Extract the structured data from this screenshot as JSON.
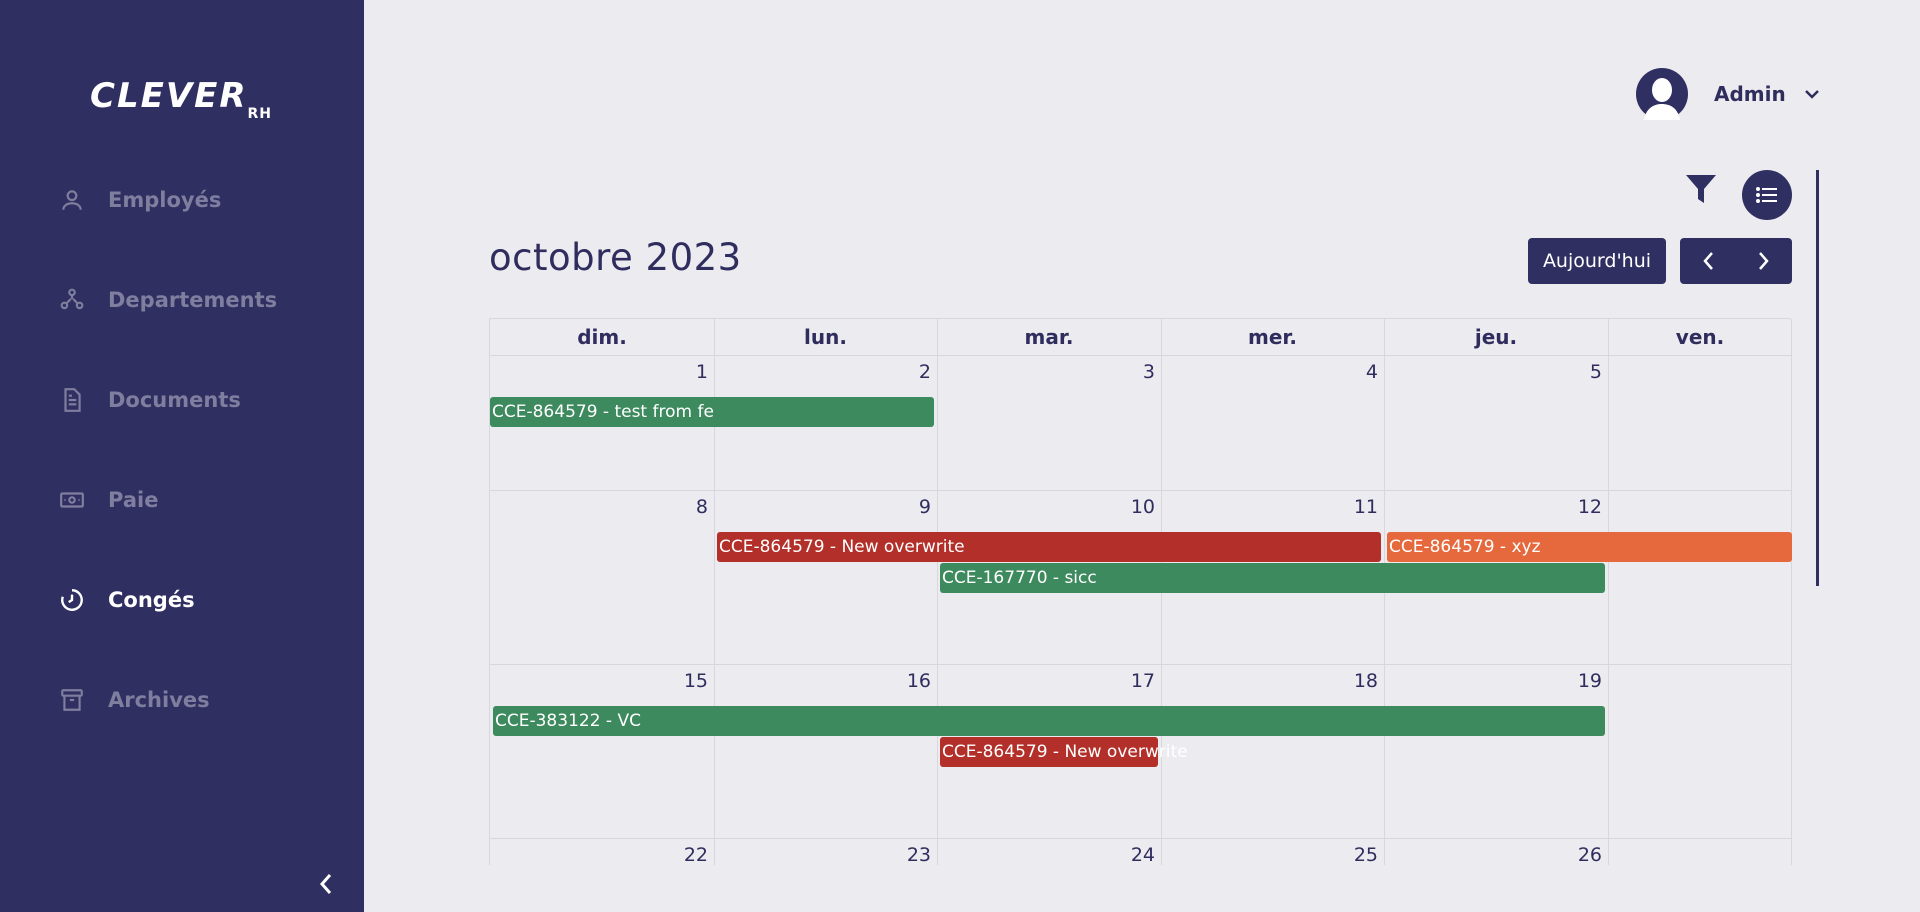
{
  "brand": {
    "logo_text": "CLEVER",
    "logo_sub": "RH"
  },
  "sidebar": {
    "items": [
      {
        "label": "Employés",
        "icon": "user-icon",
        "active": false
      },
      {
        "label": "Departements",
        "icon": "departments-icon",
        "active": false
      },
      {
        "label": "Documents",
        "icon": "document-icon",
        "active": false
      },
      {
        "label": "Paie",
        "icon": "money-icon",
        "active": false
      },
      {
        "label": "Congés",
        "icon": "timer-icon",
        "active": true
      },
      {
        "label": "Archives",
        "icon": "archive-icon",
        "active": false
      }
    ]
  },
  "user": {
    "name": "Admin"
  },
  "calendar": {
    "title": "octobre 2023",
    "today_label": "Aujourd'hui",
    "weekdays": [
      "dim.",
      "lun.",
      "mar.",
      "mer.",
      "jeu.",
      "ven."
    ],
    "weeks": [
      [
        "1",
        "2",
        "3",
        "4",
        "5",
        ""
      ],
      [
        "8",
        "9",
        "10",
        "11",
        "12",
        ""
      ],
      [
        "15",
        "16",
        "17",
        "18",
        "19",
        ""
      ],
      [
        "22",
        "23",
        "24",
        "25",
        "26",
        ""
      ]
    ],
    "events": [
      {
        "label": "CCE-864579 - test from fe",
        "week": 0,
        "start": 0,
        "end": 1,
        "lane": 0,
        "color": "#3e8a5f"
      },
      {
        "label": "CCE-864579 - New overwrite",
        "week": 1,
        "start": 1,
        "end": 3,
        "lane": 0,
        "color": "#b3302a"
      },
      {
        "label": "CCE-864579 - xyz",
        "week": 1,
        "start": 4,
        "end": 5,
        "lane": 0,
        "color": "#e5693c"
      },
      {
        "label": "CCE-167770 - sicc",
        "week": 1,
        "start": 2,
        "end": 4,
        "lane": 1,
        "color": "#3e8a5f"
      },
      {
        "label": "CCE-383122 - VC",
        "week": 2,
        "start": 0,
        "end": 4,
        "lane": 0,
        "color": "#3e8a5f"
      },
      {
        "label": "CCE-864579 - New overwrite",
        "week": 2,
        "start": 2,
        "end": 2,
        "lane": 1,
        "color": "#b3302a"
      }
    ]
  },
  "colors": {
    "primary": "#302f62",
    "background": "#ecebef",
    "green": "#3e8a5f",
    "red": "#b3302a",
    "orange": "#e5693c"
  }
}
